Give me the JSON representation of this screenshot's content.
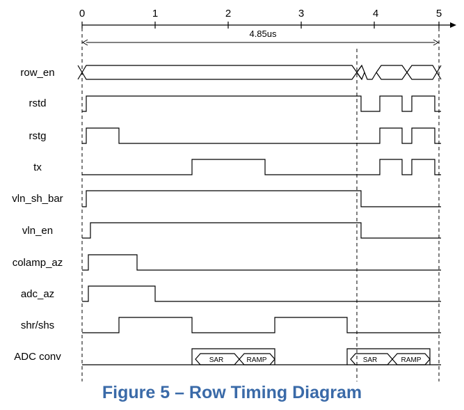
{
  "diagram": {
    "ticks": [
      "0",
      "1",
      "2",
      "3",
      "4",
      "5"
    ],
    "duration_label": "4.85us",
    "signals": [
      {
        "label": "row_en",
        "type": "bus"
      },
      {
        "label": "rstd",
        "type": "digital"
      },
      {
        "label": "rstg",
        "type": "digital"
      },
      {
        "label": "tx",
        "type": "digital"
      },
      {
        "label": "vln_sh_bar",
        "type": "digital"
      },
      {
        "label": "vln_en",
        "type": "digital"
      },
      {
        "label": "colamp_az",
        "type": "digital"
      },
      {
        "label": "adc_az",
        "type": "digital"
      },
      {
        "label": "shr/shs",
        "type": "digital"
      },
      {
        "label": "ADC conv",
        "type": "bus"
      }
    ],
    "adc_conv_segments": [
      {
        "label": "SAR"
      },
      {
        "label": "RAMP"
      },
      {
        "label": "SAR"
      },
      {
        "label": "RAMP"
      }
    ]
  },
  "caption": "Figure 5 – Row Timing Diagram"
}
